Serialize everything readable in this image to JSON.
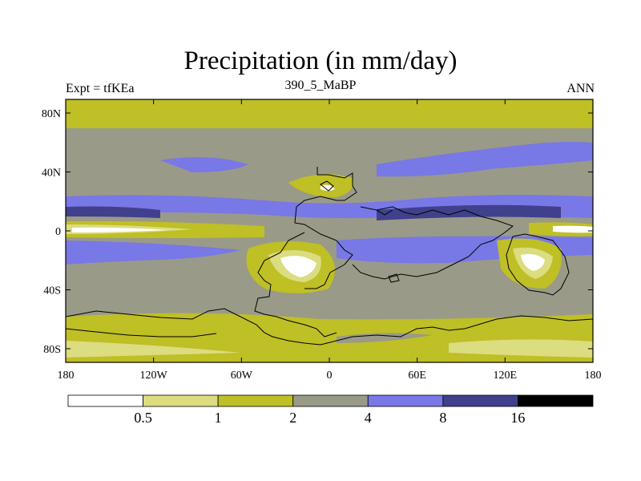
{
  "title": "Precipitation (in mm/day)",
  "subtitle_left": "Expt = tfKEa",
  "subtitle_center": "390_5_MaBP",
  "subtitle_right": "ANN",
  "y_ticks": [
    "80N",
    "40N",
    "0",
    "40S",
    "80S"
  ],
  "x_ticks": [
    "180",
    "120W",
    "60W",
    "0",
    "60E",
    "120E",
    "180"
  ],
  "colorbar": {
    "levels": [
      "0.5",
      "1",
      "2",
      "4",
      "8",
      "16"
    ],
    "colors": [
      "#ffffff",
      "#dcdc80",
      "#bfbf26",
      "#9a9a88",
      "#7878e6",
      "#40408c",
      "#000000"
    ]
  },
  "map": {
    "lon_range": [
      -180,
      180
    ],
    "lat_range": [
      -90,
      90
    ],
    "lat_bands": [
      {
        "from": 90,
        "to": 73,
        "level": 2
      },
      {
        "from": 73,
        "to": 68,
        "level": 2
      },
      {
        "from": 68,
        "to": 22,
        "level": 3
      },
      {
        "from": 22,
        "to": 12,
        "level": 4
      },
      {
        "from": 12,
        "to": 5,
        "level": 3
      },
      {
        "from": 5,
        "to": -5,
        "level": 2
      },
      {
        "from": -5,
        "to": -12,
        "level": 3
      },
      {
        "from": -12,
        "to": -22,
        "level": 4
      },
      {
        "from": -22,
        "to": -52,
        "level": 3
      },
      {
        "from": -52,
        "to": -62,
        "level": 2
      },
      {
        "from": -62,
        "to": -90,
        "level": 2
      }
    ]
  }
}
